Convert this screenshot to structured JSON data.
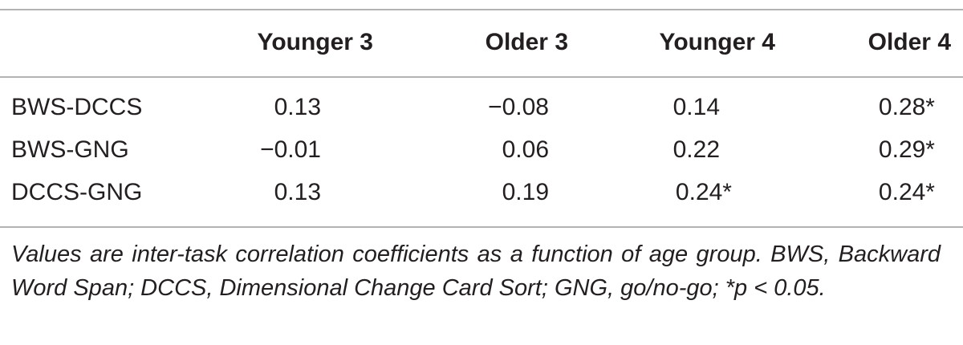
{
  "table": {
    "header": [
      "Younger 3",
      "Older 3",
      "Younger 4",
      "Older 4"
    ],
    "rows": [
      [
        "BWS-DCCS",
        "0.13",
        "−0.08",
        "0.14",
        "0.28*"
      ],
      [
        "BWS-GNG",
        "−0.01",
        "0.06",
        "0.22",
        "0.29*"
      ],
      [
        "DCCS-GNG",
        "0.13",
        "0.19",
        "0.24*",
        "0.24*"
      ]
    ]
  },
  "footnote": "Values are inter-task correlation coefficients as a function of age group. BWS, Backward Word Span; DCCS, Dimensional Change Card Sort; GNG, go/no-go; *p < 0.05."
}
